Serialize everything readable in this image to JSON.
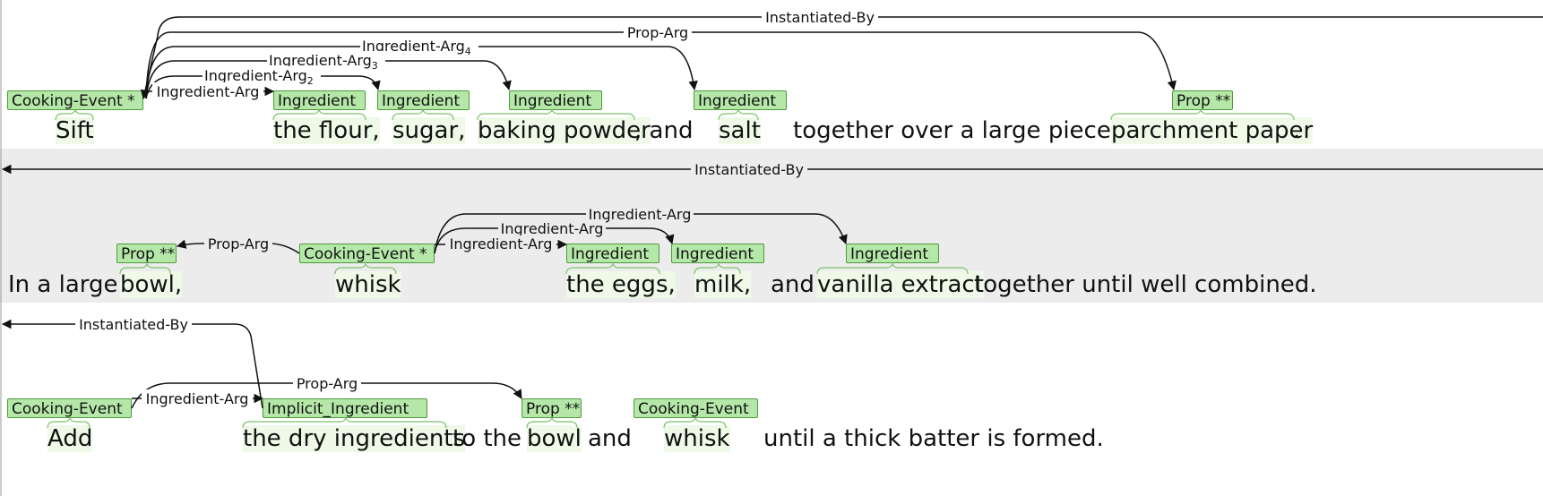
{
  "colors": {
    "label_bg": "#b5e8a8",
    "label_border": "#4e9a3c",
    "row_shade": "#ececec",
    "token_highlight": "#eef9e8"
  },
  "sentences": [
    {
      "labels": [
        "Cooking-Event *",
        "Ingredient",
        "Ingredient",
        "Ingredient",
        "Ingredient",
        "Prop **"
      ],
      "tokens": [
        "Sift",
        "the flour,",
        "sugar,",
        "baking powder",
        ", and",
        "salt",
        "together over a large piece of",
        "parchment paper",
        "."
      ],
      "relations": [
        "Instantiated-By",
        "Prop-Arg",
        "Ingredient-Arg",
        "Ingredient-Arg",
        "Ingredient-Arg",
        "Ingredient-Arg"
      ],
      "subscripts": [
        "4",
        "3",
        "2"
      ]
    },
    {
      "labels": [
        "Prop **",
        "Cooking-Event *",
        "Ingredient",
        "Ingredient",
        "Ingredient"
      ],
      "tokens": [
        "In a large",
        "bowl,",
        "whisk",
        "the eggs,",
        "milk,",
        "and",
        "vanilla extract",
        "together until well combined."
      ],
      "relations": [
        "Instantiated-By",
        "Ingredient-Arg",
        "Ingredient-Arg",
        "Prop-Arg",
        "Ingredient-Arg"
      ]
    },
    {
      "labels": [
        "Cooking-Event",
        "Implicit_Ingredient",
        "Prop **",
        "Cooking-Event"
      ],
      "tokens": [
        "Add",
        "the dry ingredients",
        "to the",
        "bowl",
        "and",
        "whisk",
        "until a thick batter is formed."
      ],
      "relations": [
        "Instantiated-By",
        "Prop-Arg",
        "Ingredient-Arg"
      ]
    }
  ]
}
